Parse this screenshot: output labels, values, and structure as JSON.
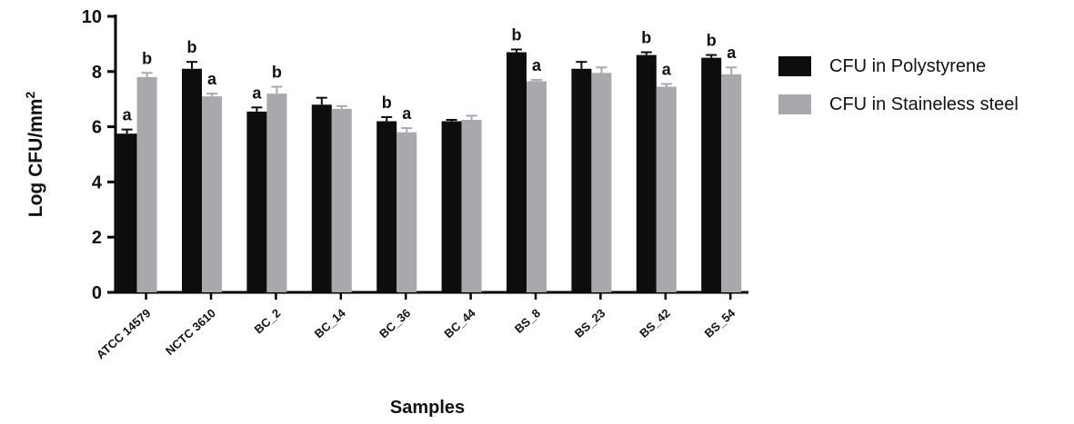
{
  "chart_data": {
    "type": "bar",
    "title": "",
    "xlabel": "Samples",
    "ylabel": "Log CFU/mm",
    "ylabel_superscript": "2",
    "ylim": [
      0,
      10
    ],
    "yticks": [
      0,
      2,
      4,
      6,
      8,
      10
    ],
    "grid": false,
    "legend_position": "right",
    "categories": [
      "ATCC 14579",
      "NCTC 3610",
      "BC_2",
      "BC_14",
      "BC_36",
      "BC_44",
      "BS_8",
      "BS_23",
      "BS_42",
      "BS_54"
    ],
    "series": [
      {
        "name": "CFU in Polystyrene",
        "color": "#0d0d0d",
        "values": [
          5.75,
          8.1,
          6.55,
          6.8,
          6.2,
          6.2,
          8.7,
          8.1,
          8.6,
          8.5
        ],
        "errors": [
          0.15,
          0.25,
          0.15,
          0.25,
          0.15,
          0.05,
          0.1,
          0.25,
          0.1,
          0.1
        ],
        "significance": [
          "a",
          "b",
          "a",
          "",
          "b",
          "",
          "b",
          "",
          "b",
          "b"
        ]
      },
      {
        "name": "CFU in Staineless steel",
        "color": "#a9a9ad",
        "values": [
          7.8,
          7.1,
          7.2,
          6.65,
          5.8,
          6.25,
          7.65,
          7.95,
          7.45,
          7.9
        ],
        "errors": [
          0.15,
          0.1,
          0.25,
          0.1,
          0.15,
          0.15,
          0.05,
          0.2,
          0.1,
          0.25
        ],
        "significance": [
          "b",
          "a",
          "b",
          "",
          "a",
          "",
          "a",
          "",
          "a",
          "a"
        ]
      }
    ]
  }
}
